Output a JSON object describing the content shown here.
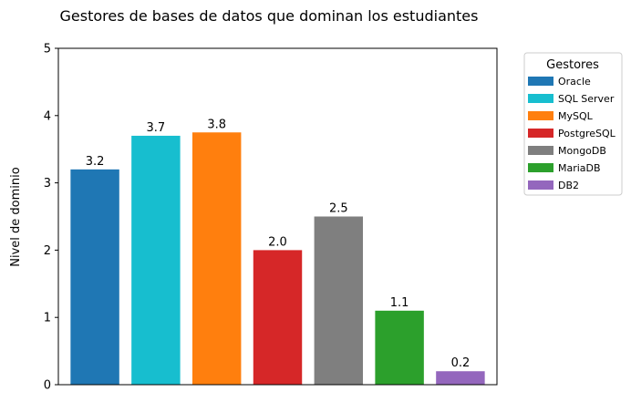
{
  "chart_data": {
    "type": "bar",
    "title": "Gestores de bases de datos que dominan los estudiantes",
    "xlabel": "",
    "ylabel": "Nivel de dominio",
    "ylim": [
      0,
      5
    ],
    "yticks": [
      "0",
      "1",
      "2",
      "3",
      "4",
      "5"
    ],
    "categories": [
      "Oracle",
      "SQL Server",
      "MySQL",
      "PostgreSQL",
      "MongoDB",
      "MariaDB",
      "DB2"
    ],
    "values": [
      3.2,
      3.7,
      3.75,
      2.0,
      2.5,
      1.1,
      0.2
    ],
    "data_labels": [
      "3.2",
      "3.7",
      "3.8",
      "2.0",
      "2.5",
      "1.1",
      "0.2"
    ],
    "colors": [
      "#1f77b4",
      "#17becf",
      "#ff7f0e",
      "#d62728",
      "#7f7f7f",
      "#2ca02c",
      "#9467bd"
    ],
    "grid": false,
    "legend": {
      "title": "Gestores",
      "placement": "outside-right",
      "entries": [
        "Oracle",
        "SQL Server",
        "MySQL",
        "PostgreSQL",
        "MongoDB",
        "MariaDB",
        "DB2"
      ]
    }
  }
}
